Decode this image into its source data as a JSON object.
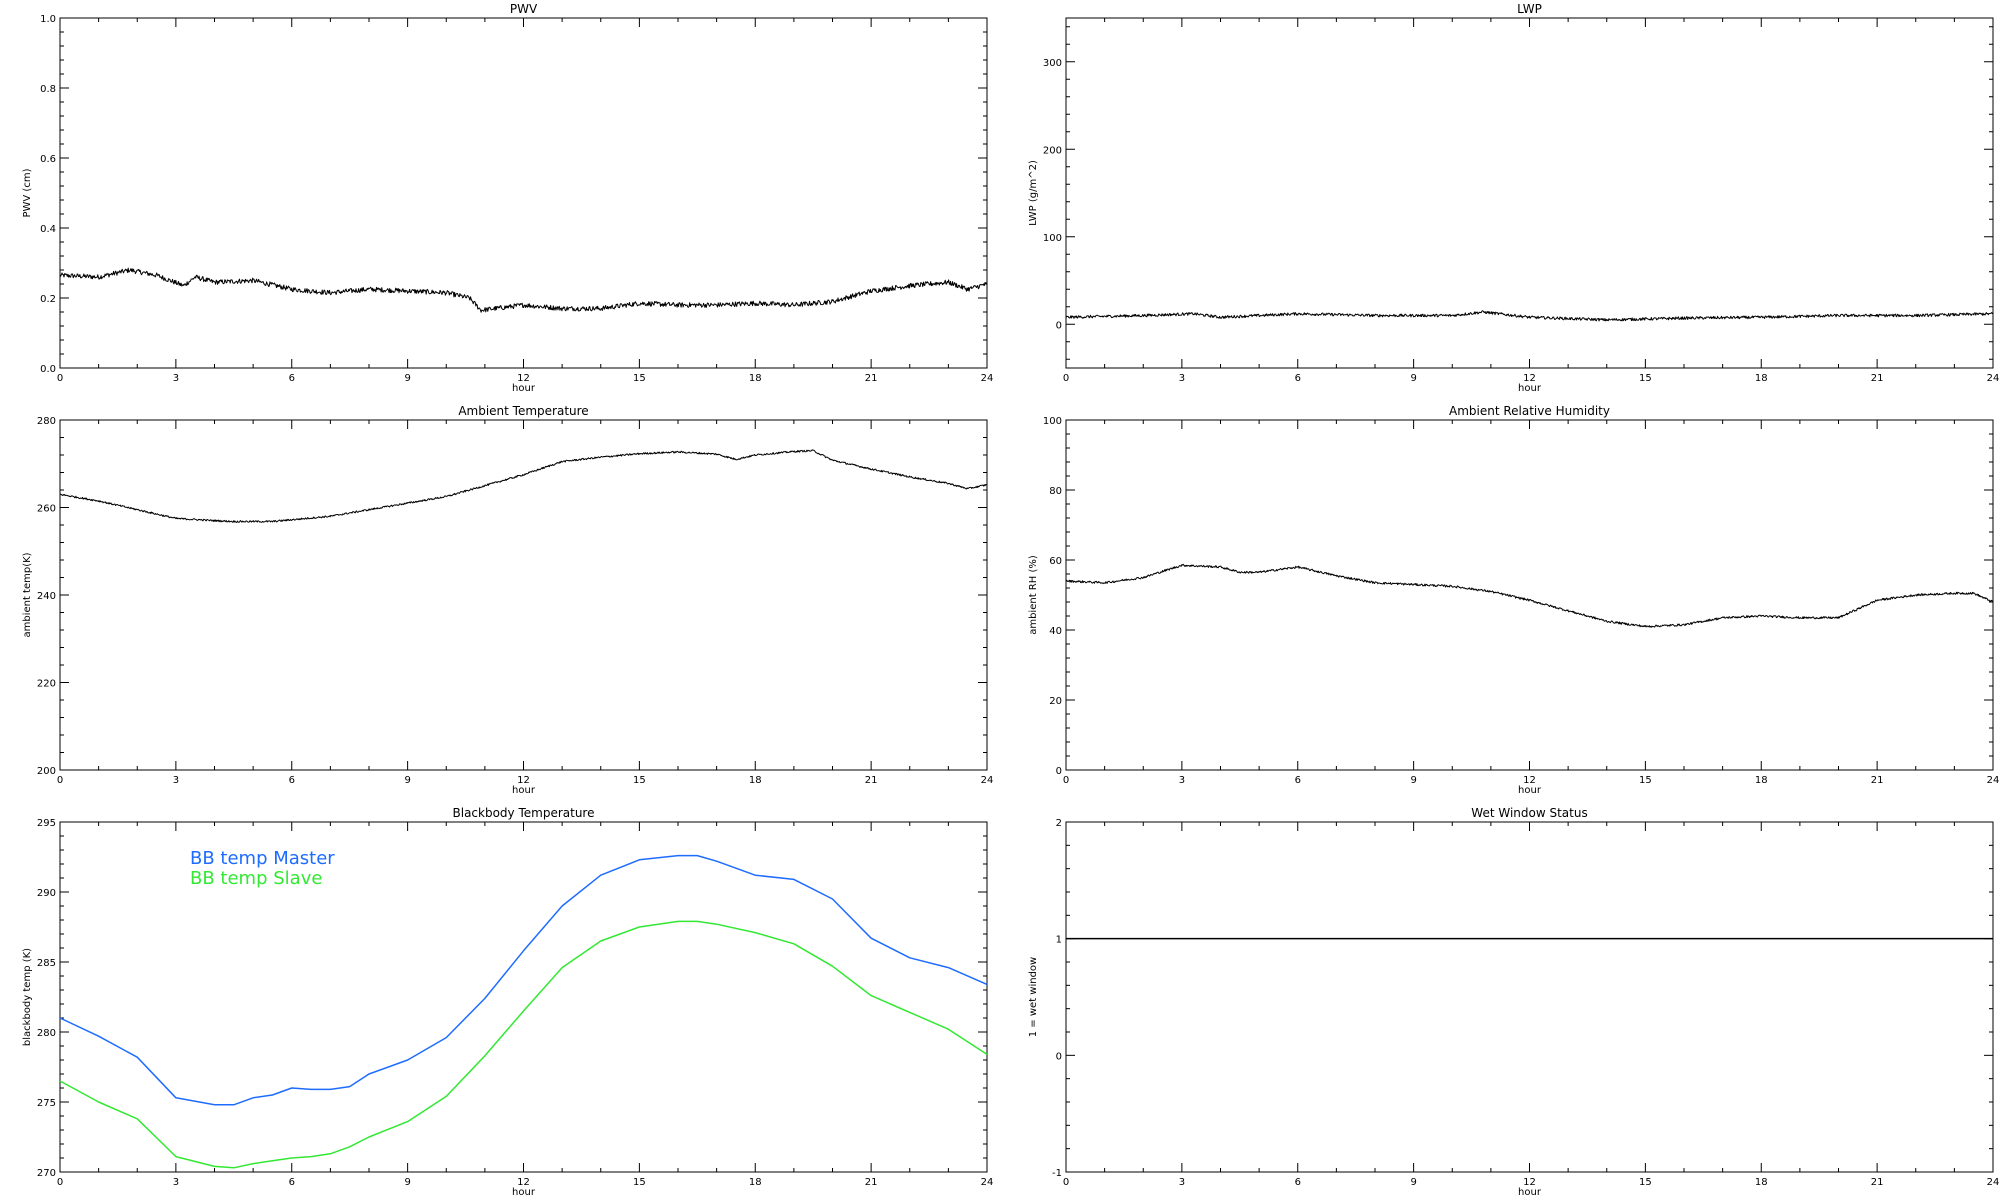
{
  "chart_data": [
    {
      "type": "line",
      "title": "PWV",
      "xlabel": "hour",
      "ylabel": "PWV (cm)",
      "xlim": [
        0,
        24
      ],
      "ylim": [
        0,
        1
      ],
      "xticks": [
        "0",
        "3",
        "6",
        "9",
        "12",
        "15",
        "18",
        "21",
        "24"
      ],
      "yticks": [
        "0.0",
        "0.2",
        "0.4",
        "0.6",
        "0.8",
        "1.0"
      ],
      "grid": false,
      "noise": 0.007,
      "series": [
        {
          "color": "#000000",
          "x": [
            0,
            1,
            1.8,
            2.5,
            3.2,
            3.5,
            4,
            5,
            6,
            7,
            8,
            9,
            10,
            10.6,
            10.9,
            12,
            13,
            14,
            15,
            16,
            17,
            18,
            19,
            20,
            21,
            22,
            23,
            23.5,
            24
          ],
          "y": [
            0.265,
            0.26,
            0.28,
            0.265,
            0.235,
            0.26,
            0.245,
            0.25,
            0.225,
            0.215,
            0.225,
            0.22,
            0.215,
            0.2,
            0.165,
            0.18,
            0.17,
            0.17,
            0.185,
            0.18,
            0.18,
            0.185,
            0.18,
            0.19,
            0.22,
            0.235,
            0.245,
            0.225,
            0.24
          ]
        }
      ]
    },
    {
      "type": "line",
      "title": "LWP",
      "xlabel": "hour",
      "ylabel": "LWP (g/m^2)",
      "xlim": [
        0,
        24
      ],
      "ylim": [
        -50,
        350
      ],
      "xticks": [
        "0",
        "3",
        "6",
        "9",
        "12",
        "15",
        "18",
        "21",
        "24"
      ],
      "yticks": [
        "0",
        "100",
        "200",
        "300"
      ],
      "grid": false,
      "noise": 1.6,
      "series": [
        {
          "color": "#000000",
          "x": [
            0,
            2,
            3.3,
            4,
            6,
            8,
            10,
            10.8,
            12,
            14,
            16,
            18,
            20,
            22,
            24
          ],
          "y": [
            8,
            10,
            12,
            8,
            12,
            10,
            10,
            14,
            8,
            5,
            7,
            8,
            10,
            10,
            12
          ]
        }
      ]
    },
    {
      "type": "line",
      "title": "Ambient Temperature",
      "xlabel": "hour",
      "ylabel": "ambient temp(K)",
      "xlim": [
        0,
        24
      ],
      "ylim": [
        200,
        280
      ],
      "xticks": [
        "0",
        "3",
        "6",
        "9",
        "12",
        "15",
        "18",
        "21",
        "24"
      ],
      "yticks": [
        "200",
        "220",
        "240",
        "260",
        "280"
      ],
      "grid": false,
      "noise": 0.2,
      "series": [
        {
          "color": "#000000",
          "x": [
            0,
            1,
            2,
            3,
            4,
            4.5,
            5.5,
            6,
            7,
            8,
            9,
            10,
            11,
            12,
            13,
            14,
            15,
            16,
            17,
            17.5,
            18,
            19,
            19.5,
            20,
            21,
            22,
            23,
            23.5,
            24
          ],
          "y": [
            263,
            261.5,
            259.5,
            257.5,
            257,
            256.8,
            256.8,
            257.2,
            258,
            259.5,
            261,
            262.5,
            265,
            267.5,
            270.5,
            271.5,
            272.3,
            272.7,
            272.2,
            271,
            272,
            272.8,
            273,
            270.8,
            268.8,
            267,
            265.5,
            264.3,
            265.2
          ]
        }
      ]
    },
    {
      "type": "line",
      "title": "Ambient Relative Humidity",
      "xlabel": "hour",
      "ylabel": "ambient RH (%)",
      "xlim": [
        0,
        24
      ],
      "ylim": [
        0,
        100
      ],
      "xticks": [
        "0",
        "3",
        "6",
        "9",
        "12",
        "15",
        "18",
        "21",
        "24"
      ],
      "yticks": [
        "0",
        "20",
        "40",
        "60",
        "80",
        "100"
      ],
      "grid": false,
      "noise": 0.3,
      "series": [
        {
          "color": "#000000",
          "x": [
            0,
            1,
            2,
            3,
            4,
            4.5,
            5,
            6,
            7,
            8,
            9,
            10,
            11,
            12,
            13,
            14,
            15,
            16,
            17,
            18,
            19,
            20,
            21,
            22,
            23,
            23.5,
            24
          ],
          "y": [
            54,
            53.5,
            55,
            58.5,
            58,
            56.5,
            56.5,
            58,
            55.5,
            53.5,
            53,
            52.5,
            51,
            48.5,
            45.5,
            42.5,
            41,
            41.5,
            43.5,
            44,
            43.5,
            43.5,
            48.5,
            50,
            50.5,
            50.5,
            48
          ]
        }
      ]
    },
    {
      "type": "line",
      "title": "Blackbody Temperature",
      "xlabel": "hour",
      "ylabel": "blackbody temp (K)",
      "xlim": [
        0,
        24
      ],
      "ylim": [
        270,
        295
      ],
      "xticks": [
        "0",
        "3",
        "6",
        "9",
        "12",
        "15",
        "18",
        "21",
        "24"
      ],
      "yticks": [
        "270",
        "275",
        "280",
        "285",
        "290",
        "295"
      ],
      "grid": false,
      "noise": 0,
      "legend_position": "top-left",
      "series": [
        {
          "name": "BB temp Master",
          "color": "#1e6cff",
          "x": [
            0,
            1,
            2,
            3,
            4,
            4.5,
            5,
            5.5,
            6,
            6.5,
            7,
            7.5,
            8,
            9,
            10,
            11,
            12,
            13,
            14,
            15,
            16,
            16.5,
            17,
            18,
            19,
            20,
            21,
            22,
            23,
            24
          ],
          "y": [
            281,
            279.7,
            278.2,
            275.3,
            274.8,
            274.8,
            275.3,
            275.5,
            276,
            275.9,
            275.9,
            276.1,
            277,
            278,
            279.6,
            282.4,
            285.8,
            289,
            291.2,
            292.3,
            292.6,
            292.6,
            292.2,
            291.2,
            290.9,
            289.5,
            286.7,
            285.3,
            284.6,
            283.4
          ]
        },
        {
          "name": "BB temp Slave",
          "color": "#33e833",
          "x": [
            0,
            1,
            2,
            3,
            4,
            4.5,
            5,
            5.5,
            6,
            6.5,
            7,
            7.5,
            8,
            9,
            10,
            11,
            12,
            13,
            14,
            15,
            16,
            16.5,
            17,
            18,
            19,
            20,
            21,
            22,
            23,
            24
          ],
          "y": [
            276.5,
            275,
            273.8,
            271.1,
            270.4,
            270.3,
            270.6,
            270.8,
            271,
            271.1,
            271.3,
            271.8,
            272.5,
            273.6,
            275.4,
            278.3,
            281.5,
            284.6,
            286.5,
            287.5,
            287.9,
            287.9,
            287.7,
            287.1,
            286.3,
            284.7,
            282.6,
            281.4,
            280.2,
            278.4
          ]
        }
      ]
    },
    {
      "type": "line",
      "title": "Wet Window Status",
      "xlabel": "hour",
      "ylabel": "1 = wet window",
      "xlim": [
        0,
        24
      ],
      "ylim": [
        -1,
        2
      ],
      "xticks": [
        "0",
        "3",
        "6",
        "9",
        "12",
        "15",
        "18",
        "21",
        "24"
      ],
      "yticks": [
        "-1",
        "0",
        "1",
        "2"
      ],
      "grid": false,
      "noise": 0,
      "series": [
        {
          "color": "#000000",
          "x": [
            0,
            24
          ],
          "y": [
            1,
            1
          ]
        }
      ]
    }
  ]
}
